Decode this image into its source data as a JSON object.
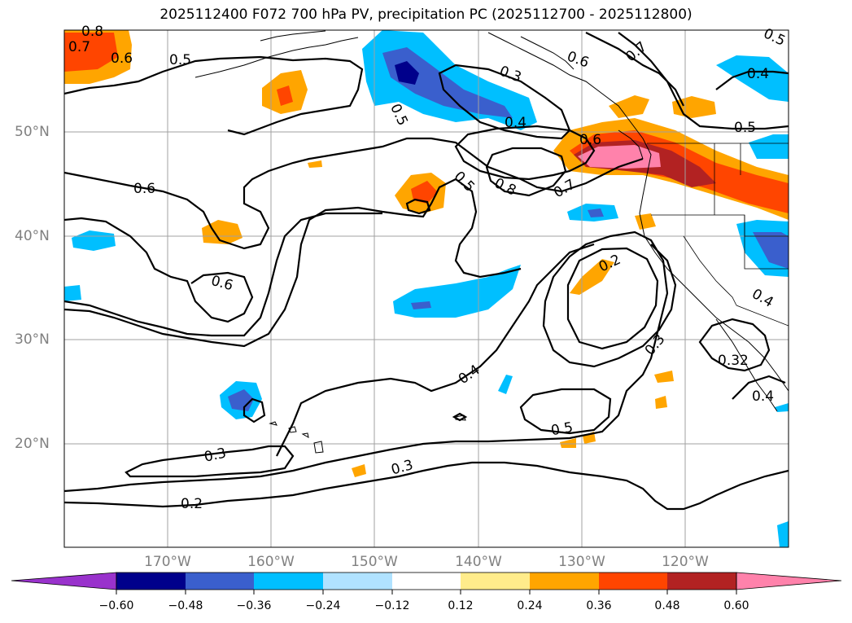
{
  "title": "2025112400 F072 700 hPa PV, precipitation PC (2025112700 - 2025112800)",
  "lat_labels": [
    "50°N",
    "40°N",
    "30°N",
    "20°N"
  ],
  "lon_labels": [
    "170°W",
    "160°W",
    "150°W",
    "140°W",
    "130°W",
    "120°W"
  ],
  "colorbar": {
    "colors": [
      "#9932cc",
      "#00008b",
      "#3a5fcd",
      "#00bfff",
      "#b0e2ff",
      "#ffffff",
      "#ffec8b",
      "#ffa500",
      "#ff4500",
      "#b22222",
      "#ff82ab"
    ],
    "tick_labels": [
      "−0.60",
      "−0.48",
      "−0.36",
      "−0.24",
      "−0.12",
      "0.12",
      "0.24",
      "0.36",
      "0.48",
      "0.60"
    ]
  },
  "contour_labels": [
    "0.8",
    "0.7",
    "0.6",
    "0.5",
    "0.5",
    "0.4",
    "0.3",
    "0.6",
    "0.7",
    "0.5",
    "0.4",
    "0.5",
    "0.6",
    "0.8",
    "0.7",
    "0.5",
    "0.6",
    "0.6",
    "0.2",
    "0.4",
    "0.3",
    "0.4",
    "0.32",
    "0.4",
    "0.5",
    "0.3",
    "0.3",
    "0.2"
  ]
}
